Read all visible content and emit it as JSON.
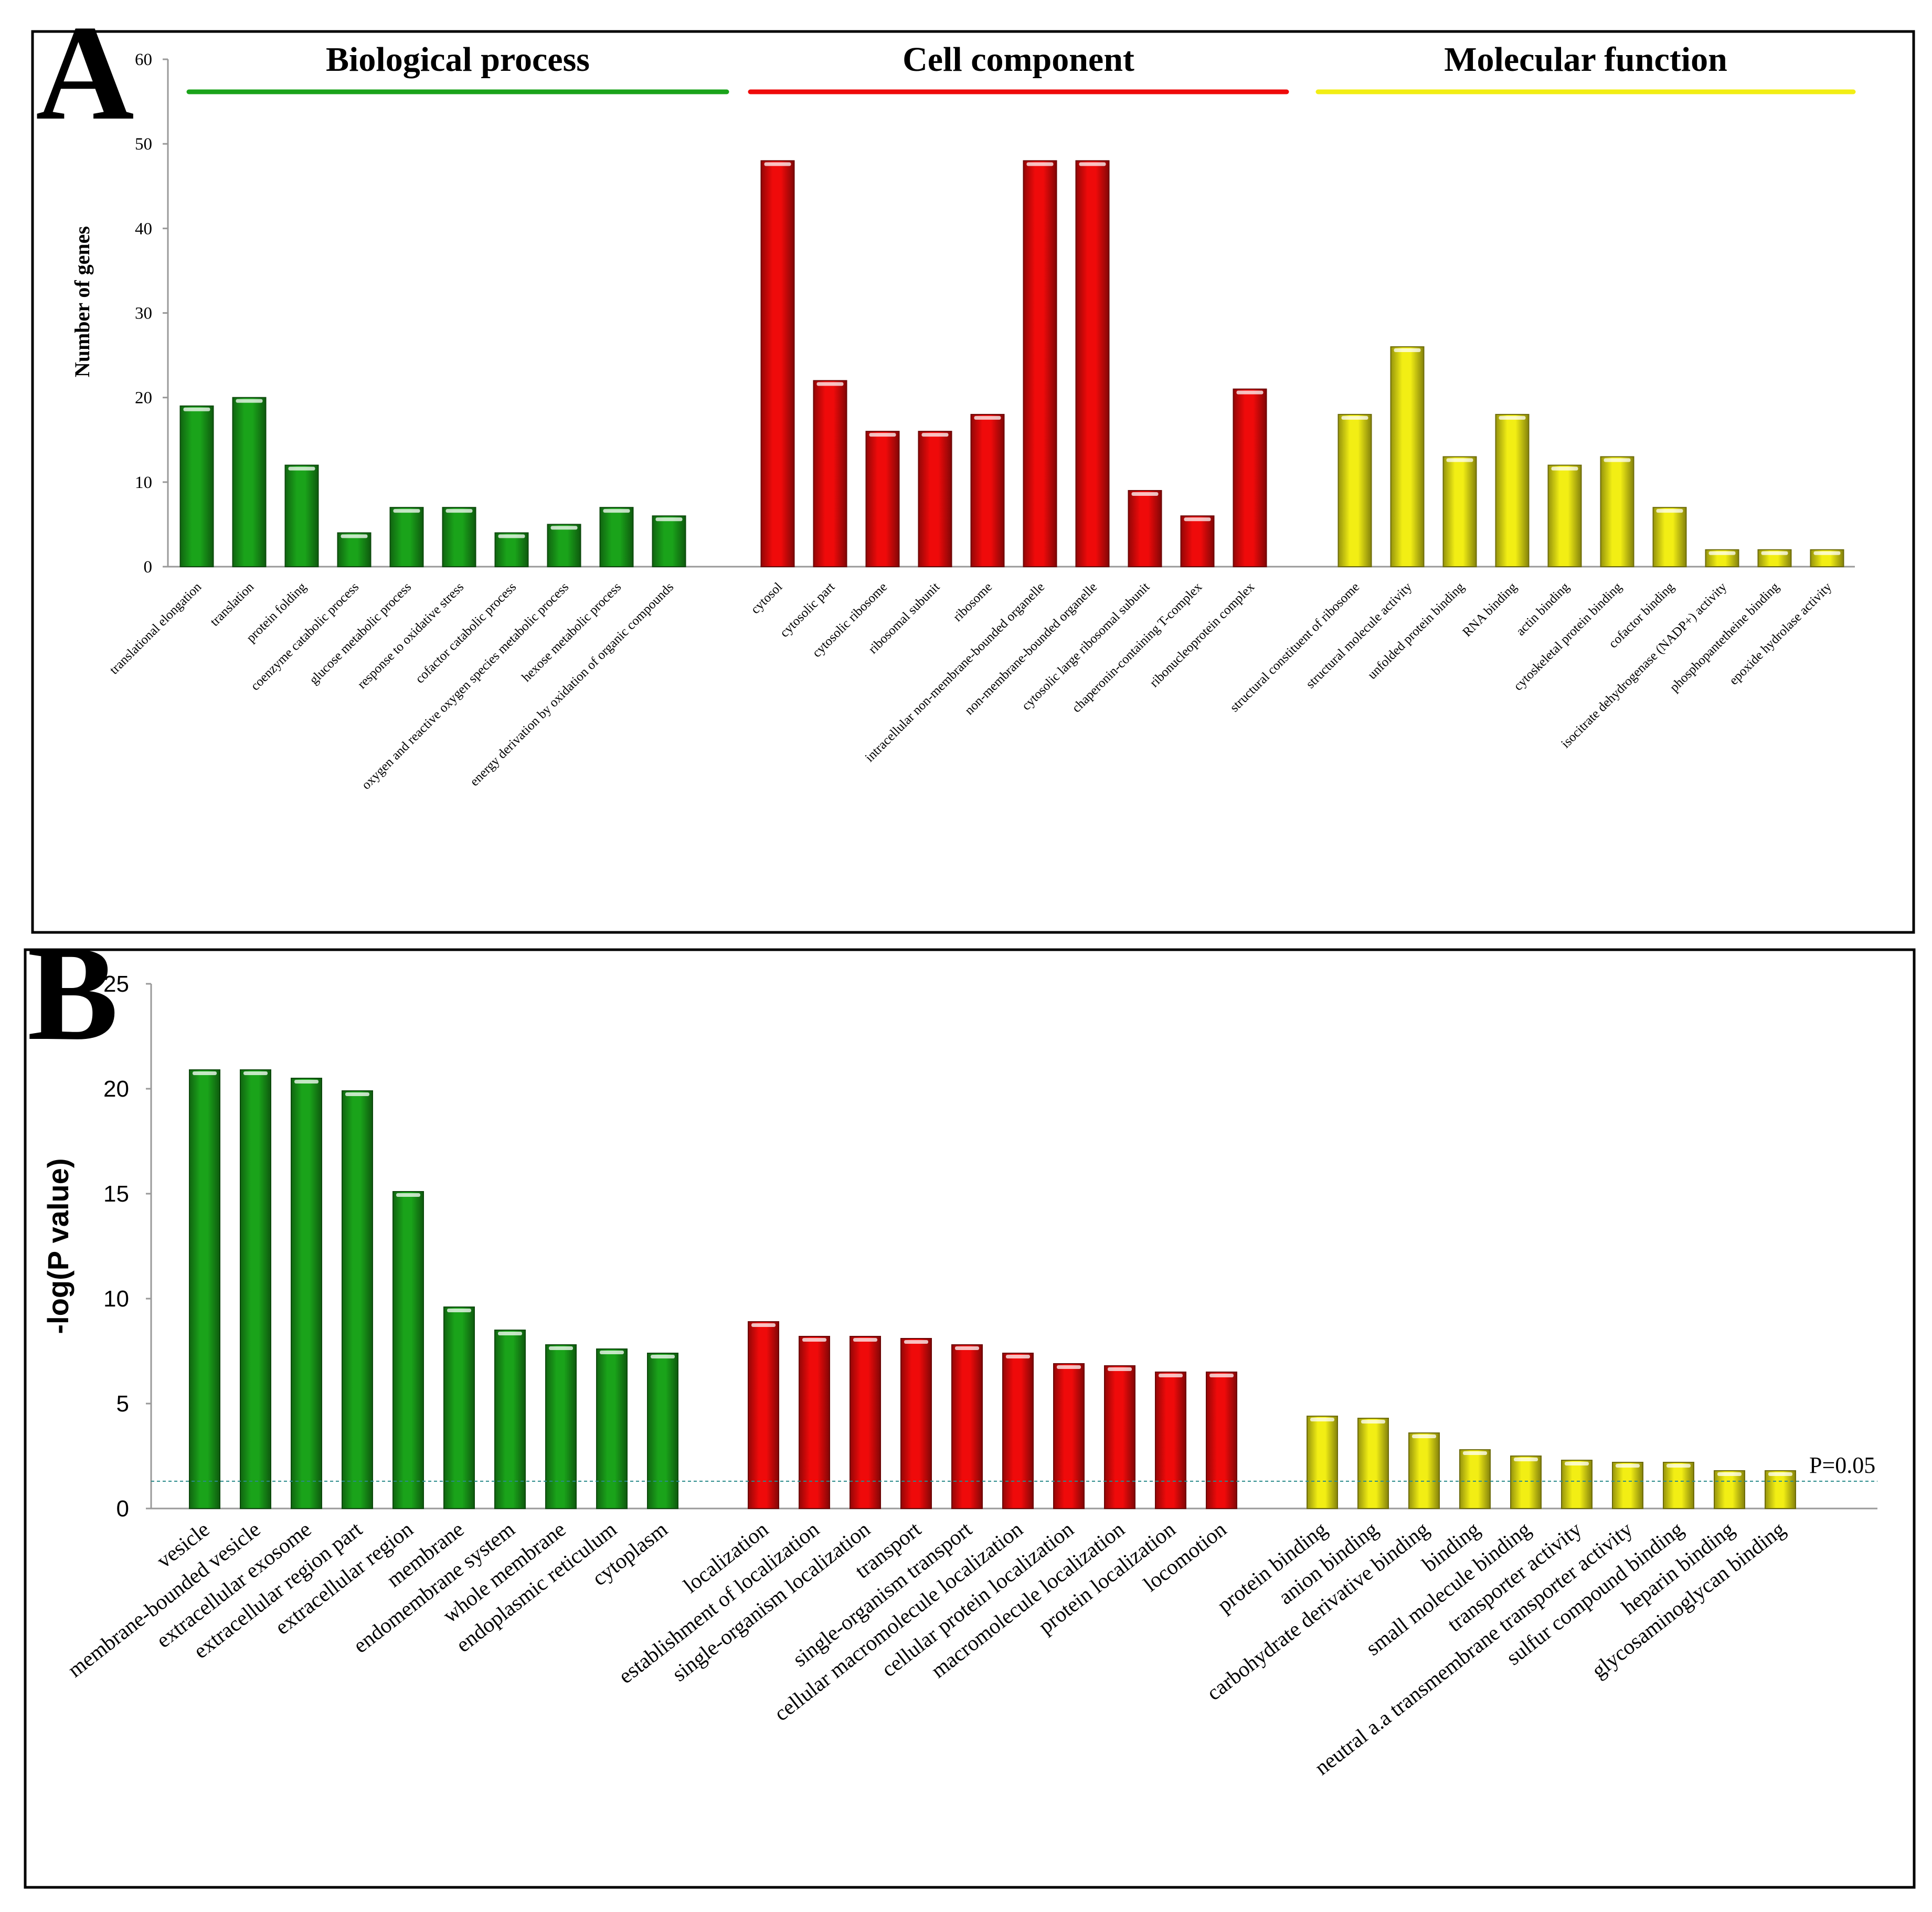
{
  "colors": {
    "green": "#1aa31a",
    "red": "#ef0a0a",
    "yellow": "#f2ee14"
  },
  "chart_data": [
    {
      "panel": "A",
      "type": "bar",
      "ylabel": "Number of genes",
      "ylim": [
        0,
        60
      ],
      "yticks": [
        0,
        10,
        20,
        30,
        40,
        50,
        60
      ],
      "groups": [
        {
          "name": "Biological process",
          "color": "green",
          "categories": [
            "translational elongation",
            "translation",
            "protein folding",
            "coenzyme catabolic process",
            "glucose metabolic process",
            "response to oxidative stress",
            "cofactor catabolic process",
            "oxygen and reactive oxygen species metabolic process",
            "hexose metabolic process",
            "energy derivation by oxidation of organic compounds"
          ],
          "values": [
            19,
            20,
            12,
            4,
            7,
            7,
            4,
            5,
            7,
            6
          ]
        },
        {
          "name": "Cell component",
          "color": "red",
          "categories": [
            "cytosol",
            "cytosolic part",
            "cytosolic ribosome",
            "ribosomal subunit",
            "ribosome",
            "intracellular non-membrane-bounded organelle",
            "non-membrane-bounded organelle",
            "cytosolic large ribosomal subunit",
            "chaperonin-containing T-complex",
            "ribonucleoprotein complex"
          ],
          "values": [
            48,
            22,
            16,
            16,
            18,
            48,
            48,
            9,
            6,
            21
          ]
        },
        {
          "name": "Molecular function",
          "color": "yellow",
          "categories": [
            "structural constituent of ribosome",
            "structural molecule activity",
            "unfolded protein binding",
            "RNA binding",
            "actin binding",
            "cytoskeletal protein binding",
            "cofactor binding",
            "isocitrate dehydrogenase (NADP+) activity",
            "phosphopantetheine binding",
            "epoxide hydrolase activity"
          ],
          "values": [
            18,
            26,
            13,
            18,
            12,
            13,
            7,
            2,
            2,
            2
          ]
        }
      ]
    },
    {
      "panel": "B",
      "type": "bar",
      "ylabel": "-log(P value)",
      "ylim": [
        0,
        25
      ],
      "yticks": [
        0,
        5,
        10,
        15,
        20,
        25
      ],
      "threshold": {
        "value": 1.3,
        "label": "P=0.05"
      },
      "groups": [
        {
          "color": "green",
          "categories": [
            "vesicle",
            "membrane-bounded vesicle",
            "extracellular exosome",
            "extracellular region part",
            "extracellular region",
            "membrane",
            "endomembrane system",
            "whole membrane",
            "endoplasmic reticulum",
            "cytoplasm"
          ],
          "values": [
            20.9,
            20.9,
            20.5,
            19.9,
            15.1,
            9.6,
            8.5,
            7.8,
            7.6,
            7.4
          ]
        },
        {
          "color": "red",
          "categories": [
            "localization",
            "establishment of localization",
            "single-organism localization",
            "transport",
            "single-organism transport",
            "cellular macromolecule localization",
            "cellular protein localization",
            "macromolecule localization",
            "protein localization",
            "locomotion"
          ],
          "values": [
            8.9,
            8.2,
            8.2,
            8.1,
            7.8,
            7.4,
            6.9,
            6.8,
            6.5,
            6.5
          ]
        },
        {
          "color": "yellow",
          "categories": [
            "protein binding",
            "anion binding",
            "carbohydrate derivative binding",
            "binding",
            "small molecule binding",
            "transporter activity",
            "neutral a.a transmembrane transporter activity",
            "sulfur compound binding",
            "heparin binding",
            "glycosaminoglycan binding"
          ],
          "values": [
            4.4,
            4.3,
            3.6,
            2.8,
            2.5,
            2.3,
            2.2,
            2.2,
            1.8,
            1.8
          ]
        }
      ]
    }
  ]
}
